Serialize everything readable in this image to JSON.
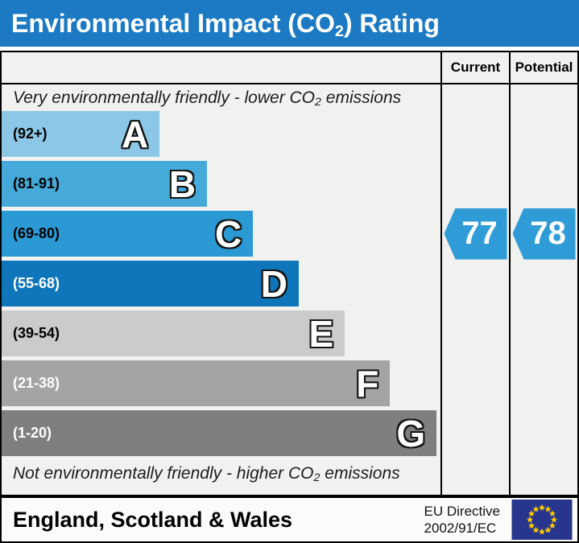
{
  "title_bar": {
    "text_pre": "Environmental Impact (CO",
    "text_sub": "2",
    "text_post": ") Rating",
    "background": "#1b7ac3"
  },
  "table": {
    "header": {
      "current": "Current",
      "potential": "Potential"
    },
    "top_note": {
      "pre": "Very environmentally friendly - lower CO",
      "sub": "2",
      "post": " emissions"
    },
    "bottom_note": {
      "pre": "Not environmentally friendly - higher CO",
      "sub": "2",
      "post": " emissions"
    },
    "bands": [
      {
        "letter": "A",
        "range": "(92+)",
        "color": "#8cc7e7",
        "width_pct": 36.0,
        "label_color": "#000000"
      },
      {
        "letter": "B",
        "range": "(81-91)",
        "color": "#45a9d9",
        "width_pct": 46.8,
        "label_color": "#000000"
      },
      {
        "letter": "C",
        "range": "(69-80)",
        "color": "#2b9ad4",
        "width_pct": 57.3,
        "label_color": "#000000"
      },
      {
        "letter": "D",
        "range": "(55-68)",
        "color": "#1076bb",
        "width_pct": 67.7,
        "label_color": "#ffffff"
      },
      {
        "letter": "E",
        "range": "(39-54)",
        "color": "#cbcbcb",
        "width_pct": 78.2,
        "label_color": "#000000"
      },
      {
        "letter": "F",
        "range": "(21-38)",
        "color": "#a4a4a4",
        "width_pct": 88.5,
        "label_color": "#ffffff"
      },
      {
        "letter": "G",
        "range": "(1-20)",
        "color": "#7f7f7f",
        "width_pct": 99.1,
        "label_color": "#ffffff"
      }
    ],
    "current": {
      "value": "77",
      "band": "C",
      "color": "#2f9cd8"
    },
    "potential": {
      "value": "78",
      "band": "C",
      "color": "#2f9cd8"
    }
  },
  "footer": {
    "region": "England, Scotland & Wales",
    "directive_line1": "EU Directive",
    "directive_line2": "2002/91/EC",
    "eu_flag": {
      "background": "#27358c",
      "stars": "#ffcc00"
    }
  },
  "chart_data": {
    "type": "bar",
    "title": "Environmental Impact (CO2) Rating",
    "categories": [
      "A",
      "B",
      "C",
      "D",
      "E",
      "F",
      "G"
    ],
    "band_ranges": [
      "92+",
      "81-91",
      "69-80",
      "55-68",
      "39-54",
      "21-38",
      "1-20"
    ],
    "bar_length_pct": [
      36.0,
      46.8,
      57.3,
      67.7,
      78.2,
      88.5,
      99.1
    ],
    "series": [
      {
        "name": "Current",
        "value": 77,
        "band": "C"
      },
      {
        "name": "Potential",
        "value": 78,
        "band": "C"
      }
    ],
    "annotations": [
      "Very environmentally friendly - lower CO2 emissions",
      "Not environmentally friendly - higher CO2 emissions"
    ],
    "region": "England, Scotland & Wales",
    "directive": "EU Directive 2002/91/EC",
    "legend_position": "none",
    "grid": false
  }
}
